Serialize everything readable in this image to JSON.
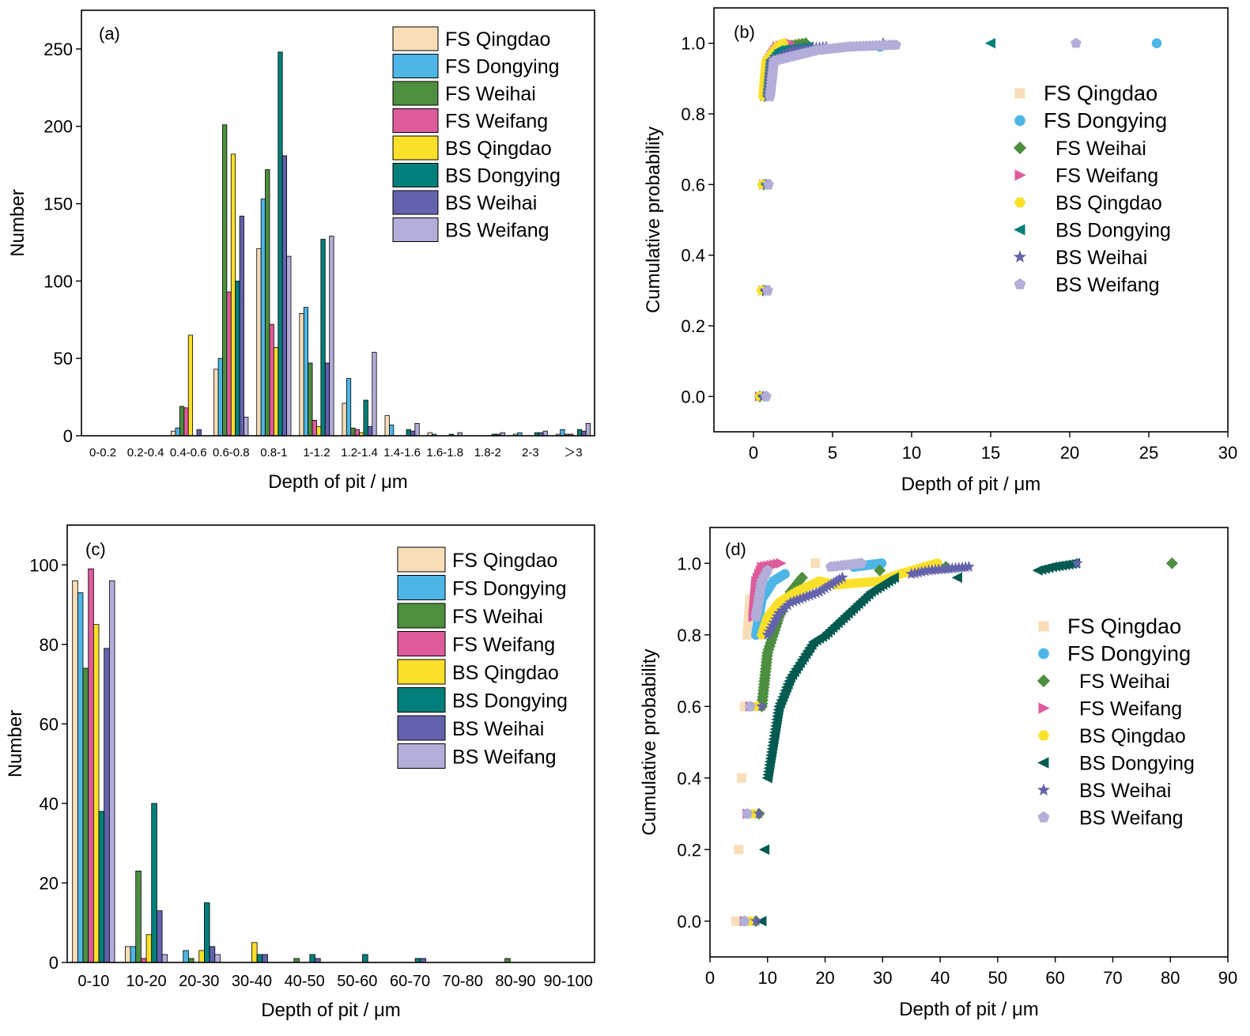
{
  "colors": {
    "FS Qingdao": "#F8DEB8",
    "FS Dongying": "#4DB6E6",
    "FS Weihai": "#4D8E3F",
    "FS Weifang": "#DE5B9C",
    "BS Qingdao": "#FBE02A",
    "BS Dongying": "#007F7A",
    "BS Weihai": "#6462AC",
    "BS Weifang": "#B3ADD9",
    "BS Dongying (d)": "#005A50"
  },
  "chart_data": [
    {
      "panel": "(a)",
      "type": "bar",
      "xlabel": "Depth of pit / μm",
      "ylabel": "Number",
      "ylim": [
        0,
        275
      ],
      "yticks": [
        0,
        50,
        100,
        150,
        200,
        250
      ],
      "legend_position": "top-right",
      "categories": [
        "0-0.2",
        "0.2-0.4",
        "0.4-0.6",
        "0.6-0.8",
        "0.8-1",
        "1-1.2",
        "1.2-1.4",
        "1.4-1.6",
        "1.6-1.8",
        "1.8-2",
        "2-3",
        "＞3"
      ],
      "tick_labels": [
        "0-0.2",
        "0.2-0.4",
        "0.4-0.6",
        "0.6-0.8",
        "0.8-1",
        "1-1.2",
        "1.2-1.4",
        "1.4-1.6",
        "1.6-1.8",
        "1.8-2",
        "2-3",
        "＞3"
      ],
      "series": [
        {
          "name": "FS Qingdao",
          "values": [
            0,
            0,
            3,
            43,
            121,
            79,
            21,
            13,
            2,
            0,
            1,
            1
          ]
        },
        {
          "name": "FS Dongying",
          "values": [
            0,
            0,
            5,
            50,
            153,
            83,
            37,
            7,
            1,
            0,
            2,
            4
          ]
        },
        {
          "name": "FS Weihai",
          "values": [
            0,
            0,
            19,
            201,
            172,
            47,
            5,
            0,
            0,
            0,
            0,
            1
          ]
        },
        {
          "name": "FS Weifang",
          "values": [
            0,
            0,
            18,
            93,
            72,
            10,
            4,
            0,
            0,
            0,
            0,
            1
          ]
        },
        {
          "name": "BS Qingdao",
          "values": [
            0,
            0,
            65,
            182,
            57,
            6,
            2,
            0,
            0,
            0,
            0,
            0
          ]
        },
        {
          "name": "BS Dongying",
          "values": [
            0,
            0,
            0,
            100,
            248,
            127,
            23,
            4,
            1,
            1,
            2,
            4
          ]
        },
        {
          "name": "BS Weihai",
          "values": [
            0,
            0,
            4,
            142,
            181,
            47,
            6,
            3,
            0,
            1,
            2,
            3
          ]
        },
        {
          "name": "BS Weifang",
          "values": [
            0,
            0,
            0,
            12,
            116,
            129,
            54,
            8,
            2,
            2,
            3,
            8
          ]
        }
      ]
    },
    {
      "panel": "(b)",
      "type": "scatter",
      "xlabel": "Depth of pit / μm",
      "ylabel": "Cumulative probability",
      "xlim": [
        -2.5,
        30
      ],
      "ylim": [
        -0.1,
        1.1
      ],
      "xticks": [
        0,
        5,
        10,
        15,
        20,
        25,
        30
      ],
      "yticks": [
        0.0,
        0.2,
        0.4,
        0.6,
        0.8,
        1.0
      ],
      "legend_position": "right",
      "series": [
        {
          "name": "FS Qingdao",
          "marker": "square",
          "points": [
            [
              0.7,
              0.0
            ],
            [
              0.8,
              0.3
            ],
            [
              0.85,
              0.6
            ],
            [
              0.9,
              0.85
            ],
            [
              1.0,
              0.95
            ],
            [
              1.3,
              0.98
            ],
            [
              2.0,
              0.99
            ],
            [
              3.0,
              1.0
            ]
          ]
        },
        {
          "name": "FS Dongying",
          "marker": "circle",
          "points": [
            [
              0.7,
              0.0
            ],
            [
              0.8,
              0.3
            ],
            [
              0.85,
              0.6
            ],
            [
              0.9,
              0.85
            ],
            [
              1.1,
              0.95
            ],
            [
              1.5,
              0.98
            ],
            [
              8.0,
              0.99
            ],
            [
              25.5,
              1.0
            ]
          ]
        },
        {
          "name": "FS Weihai",
          "marker": "diamond",
          "points": [
            [
              0.4,
              0.0
            ],
            [
              0.6,
              0.3
            ],
            [
              0.65,
              0.6
            ],
            [
              0.7,
              0.85
            ],
            [
              0.9,
              0.95
            ],
            [
              2.0,
              0.99
            ],
            [
              3.3,
              1.0
            ]
          ]
        },
        {
          "name": "FS Weifang",
          "marker": "triangle-right",
          "points": [
            [
              0.4,
              0.0
            ],
            [
              0.6,
              0.3
            ],
            [
              0.65,
              0.6
            ],
            [
              0.7,
              0.85
            ],
            [
              0.9,
              0.95
            ],
            [
              1.5,
              0.99
            ],
            [
              2.3,
              1.0
            ]
          ]
        },
        {
          "name": "BS Qingdao",
          "marker": "hexagon",
          "points": [
            [
              0.4,
              0.0
            ],
            [
              0.5,
              0.3
            ],
            [
              0.55,
              0.6
            ],
            [
              0.6,
              0.85
            ],
            [
              0.8,
              0.95
            ],
            [
              1.5,
              0.99
            ],
            [
              1.9,
              1.0
            ]
          ]
        },
        {
          "name": "BS Dongying",
          "marker": "triangle-left",
          "points": [
            [
              0.6,
              0.0
            ],
            [
              0.75,
              0.3
            ],
            [
              0.8,
              0.6
            ],
            [
              0.9,
              0.85
            ],
            [
              1.1,
              0.95
            ],
            [
              1.6,
              0.98
            ],
            [
              3.5,
              0.99
            ],
            [
              15.0,
              1.0
            ]
          ]
        },
        {
          "name": "BS Weihai",
          "marker": "star",
          "points": [
            [
              0.6,
              0.0
            ],
            [
              0.75,
              0.3
            ],
            [
              0.8,
              0.6
            ],
            [
              0.9,
              0.85
            ],
            [
              1.1,
              0.95
            ],
            [
              2.5,
              0.98
            ],
            [
              4.6,
              0.99
            ],
            [
              8.2,
              1.0
            ]
          ]
        },
        {
          "name": "BS Weifang",
          "marker": "pentagon",
          "points": [
            [
              0.8,
              0.0
            ],
            [
              0.9,
              0.3
            ],
            [
              0.95,
              0.6
            ],
            [
              1.05,
              0.85
            ],
            [
              1.3,
              0.95
            ],
            [
              4.0,
              0.98
            ],
            [
              6.1,
              0.99
            ],
            [
              9.0,
              0.995
            ],
            [
              20.4,
              1.0
            ]
          ]
        }
      ]
    },
    {
      "panel": "(c)",
      "type": "bar",
      "xlabel": "Depth of pit / μm",
      "ylabel": "Number",
      "ylim": [
        0,
        110
      ],
      "yticks": [
        0,
        20,
        40,
        60,
        80,
        100
      ],
      "legend_position": "top-right",
      "categories": [
        "0-10",
        "10-20",
        "20-30",
        "30-40",
        "40-50",
        "50-60",
        "60-70",
        "70-80",
        "80-90",
        "90-100"
      ],
      "tick_labels": [
        "0-10",
        "10-20",
        "20-30",
        "30-40",
        "40-50",
        "50-60",
        "60-70",
        "70-80",
        "80-90",
        "90-100"
      ],
      "series": [
        {
          "name": "FS Qingdao",
          "values": [
            96,
            4,
            0,
            0,
            0,
            0,
            0,
            0,
            0,
            0
          ]
        },
        {
          "name": "FS Dongying",
          "values": [
            93,
            4,
            3,
            0,
            0,
            0,
            0,
            0,
            0,
            0
          ]
        },
        {
          "name": "FS Weihai",
          "values": [
            74,
            23,
            1,
            0,
            1,
            0,
            0,
            0,
            1,
            0
          ]
        },
        {
          "name": "FS Weifang",
          "values": [
            99,
            1,
            0,
            0,
            0,
            0,
            0,
            0,
            0,
            0
          ]
        },
        {
          "name": "BS Qingdao",
          "values": [
            85,
            7,
            3,
            5,
            0,
            0,
            0,
            0,
            0,
            0
          ]
        },
        {
          "name": "BS Dongying",
          "values": [
            38,
            40,
            15,
            2,
            2,
            2,
            1,
            0,
            0,
            0
          ]
        },
        {
          "name": "BS Weihai",
          "values": [
            79,
            13,
            4,
            2,
            1,
            0,
            1,
            0,
            0,
            0
          ]
        },
        {
          "name": "BS Weifang",
          "values": [
            96,
            2,
            2,
            0,
            0,
            0,
            0,
            0,
            0,
            0
          ]
        }
      ]
    },
    {
      "panel": "(d)",
      "type": "scatter",
      "xlabel": "Depth of pit / μm",
      "ylabel": "Cumulative probability",
      "xlim": [
        0,
        90
      ],
      "ylim": [
        -0.1,
        1.1
      ],
      "xticks": [
        0,
        10,
        20,
        30,
        40,
        50,
        60,
        70,
        80,
        90
      ],
      "yticks": [
        0.0,
        0.2,
        0.4,
        0.6,
        0.8,
        1.0
      ],
      "legend_position": "right",
      "series": [
        {
          "name": "FS Qingdao",
          "marker": "square",
          "points": [
            [
              4.5,
              0.0
            ],
            [
              5.0,
              0.2
            ],
            [
              5.5,
              0.4
            ],
            [
              6.0,
              0.6
            ],
            [
              6.5,
              0.8
            ],
            [
              7.0,
              0.9
            ],
            [
              18.3,
              1.0
            ]
          ]
        },
        {
          "name": "FS Dongying",
          "marker": "circle",
          "points": [
            [
              6.0,
              0.0
            ],
            [
              6.5,
              0.3
            ],
            [
              7.0,
              0.6
            ],
            [
              8.0,
              0.8
            ],
            [
              9.0,
              0.9
            ],
            [
              11.0,
              0.95
            ],
            [
              13.0,
              0.97
            ],
            [
              25.0,
              0.99
            ],
            [
              29.8,
              1.0
            ]
          ]
        },
        {
          "name": "FS Weihai",
          "marker": "diamond",
          "points": [
            [
              8.0,
              0.0
            ],
            [
              8.5,
              0.3
            ],
            [
              9.0,
              0.6
            ],
            [
              10.0,
              0.75
            ],
            [
              12.0,
              0.85
            ],
            [
              14.0,
              0.92
            ],
            [
              16.0,
              0.96
            ],
            [
              29.5,
              0.98
            ],
            [
              41.0,
              0.99
            ],
            [
              80.3,
              1.0
            ]
          ]
        },
        {
          "name": "FS Weifang",
          "marker": "triangle-right",
          "points": [
            [
              6.0,
              0.0
            ],
            [
              6.5,
              0.3
            ],
            [
              7.0,
              0.6
            ],
            [
              7.5,
              0.85
            ],
            [
              8.0,
              0.95
            ],
            [
              9.0,
              0.99
            ],
            [
              12.3,
              1.0
            ]
          ]
        },
        {
          "name": "BS Qingdao",
          "marker": "hexagon",
          "points": [
            [
              7.0,
              0.0
            ],
            [
              7.5,
              0.3
            ],
            [
              8.0,
              0.6
            ],
            [
              9.0,
              0.8
            ],
            [
              10.0,
              0.85
            ],
            [
              12.0,
              0.89
            ],
            [
              15.0,
              0.92
            ],
            [
              19.0,
              0.95
            ],
            [
              22.0,
              0.94
            ],
            [
              29.5,
              0.95
            ],
            [
              33.0,
              0.97
            ],
            [
              39.5,
              1.0
            ]
          ]
        },
        {
          "name": "BS Dongying",
          "marker": "triangle-left",
          "points": [
            [
              9.0,
              0.0
            ],
            [
              9.5,
              0.2
            ],
            [
              10.0,
              0.4
            ],
            [
              11.0,
              0.5
            ],
            [
              12.0,
              0.6
            ],
            [
              14.0,
              0.68
            ],
            [
              16.0,
              0.73
            ],
            [
              18.0,
              0.78
            ],
            [
              20.0,
              0.8
            ],
            [
              24.0,
              0.86
            ],
            [
              28.0,
              0.92
            ],
            [
              32.0,
              0.96
            ],
            [
              43.0,
              0.96
            ],
            [
              57.0,
              0.98
            ],
            [
              59.5,
              0.99
            ],
            [
              63.5,
              1.0
            ]
          ]
        },
        {
          "name": "BS Weihai",
          "marker": "star",
          "points": [
            [
              8.0,
              0.0
            ],
            [
              8.5,
              0.3
            ],
            [
              9.0,
              0.6
            ],
            [
              10.0,
              0.8
            ],
            [
              12.0,
              0.86
            ],
            [
              14.0,
              0.89
            ],
            [
              19.0,
              0.92
            ],
            [
              23.0,
              0.96
            ],
            [
              35.0,
              0.97
            ],
            [
              38.0,
              0.98
            ],
            [
              45.0,
              0.99
            ],
            [
              63.8,
              1.0
            ]
          ]
        },
        {
          "name": "BS Weifang",
          "marker": "pentagon",
          "points": [
            [
              6.0,
              0.0
            ],
            [
              6.5,
              0.3
            ],
            [
              7.0,
              0.6
            ],
            [
              8.0,
              0.85
            ],
            [
              9.0,
              0.95
            ],
            [
              10.0,
              0.98
            ],
            [
              21.0,
              0.99
            ],
            [
              26.3,
              1.0
            ]
          ]
        }
      ]
    }
  ]
}
